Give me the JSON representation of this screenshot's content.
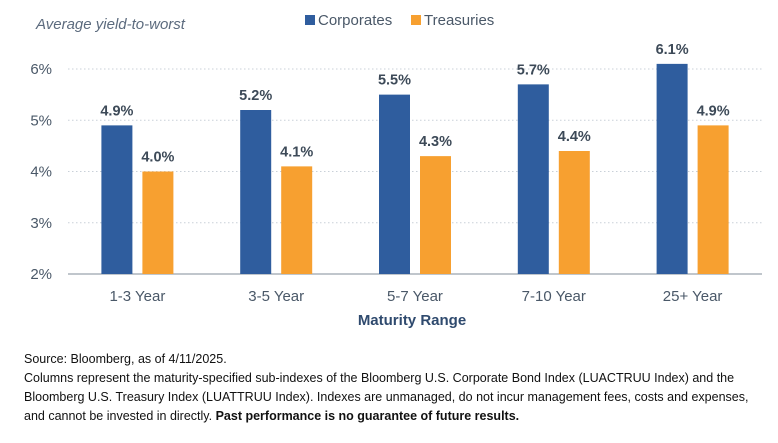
{
  "chart_data": {
    "type": "bar",
    "ylabel": "Average yield-to-worst",
    "xlabel": "Maturity Range",
    "categories": [
      "1-3 Year",
      "3-5 Year",
      "5-7 Year",
      "7-10 Year",
      "25+ Year"
    ],
    "series": [
      {
        "name": "Corporates",
        "color": "#2f5d9e",
        "values": [
          4.9,
          5.2,
          5.5,
          5.7,
          6.1
        ],
        "labels": [
          "4.9%",
          "5.2%",
          "5.5%",
          "5.7%",
          "6.1%"
        ]
      },
      {
        "name": "Treasuries",
        "color": "#f7a030",
        "values": [
          4.0,
          4.1,
          4.3,
          4.4,
          4.9
        ],
        "labels": [
          "4.0%",
          "4.1%",
          "4.3%",
          "4.4%",
          "4.9%"
        ]
      }
    ],
    "ylim": [
      2,
      6
    ],
    "yticks": [
      2,
      3,
      4,
      5,
      6
    ],
    "ytick_labels": [
      "2%",
      "3%",
      "4%",
      "5%",
      "6%"
    ],
    "grid": true,
    "legend_position": "top"
  },
  "notes": {
    "source": "Source: Bloomberg, as of 4/11/2025.",
    "description": "Columns represent the maturity-specified sub-indexes of the Bloomberg U.S. Corporate Bond Index (LUACTRUU Index) and the Bloomberg U.S. Treasury Index (LUATTRUU Index). Indexes are unmanaged, do not incur management fees, costs and expenses, and cannot be invested in directly.",
    "disclaimer": "Past performance is no guarantee of future results."
  }
}
